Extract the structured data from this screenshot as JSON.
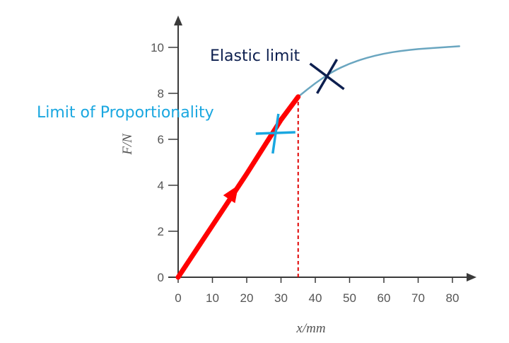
{
  "chart_data": {
    "type": "line",
    "xlabel": "x/mm",
    "ylabel": "F/N",
    "xlim": [
      0,
      84
    ],
    "ylim": [
      0,
      10.8
    ],
    "x_ticks": [
      0,
      10,
      20,
      30,
      40,
      50,
      60,
      70,
      80
    ],
    "y_ticks": [
      0,
      2,
      4,
      6,
      8,
      10
    ],
    "grid": false,
    "series": [
      {
        "color": "#ff0000",
        "style": "thick-solid-with-arrow",
        "points": [
          [
            0,
            0
          ],
          [
            10,
            2.25
          ],
          [
            20,
            4.5
          ],
          [
            30,
            6.85
          ],
          [
            35,
            7.85
          ]
        ]
      },
      {
        "color": "#6aa6c0",
        "style": "thin-solid",
        "points": [
          [
            35,
            7.85
          ],
          [
            40,
            8.45
          ],
          [
            45,
            8.95
          ],
          [
            50,
            9.3
          ],
          [
            55,
            9.55
          ],
          [
            60,
            9.73
          ],
          [
            65,
            9.85
          ],
          [
            70,
            9.93
          ],
          [
            75,
            9.98
          ],
          [
            82,
            10.05
          ]
        ]
      }
    ],
    "vline": {
      "x": 35,
      "from_y": 0,
      "to_y": 7.85,
      "color": "#e00000",
      "style": "dashed"
    },
    "annotations": [
      {
        "text": "Limit of Proportionality",
        "x": 28,
        "y": 6.4,
        "color": "#1aa7e0"
      },
      {
        "text": "Elastic limit",
        "x": 43,
        "y": 8.8,
        "color": "#0d1f4f"
      }
    ]
  }
}
